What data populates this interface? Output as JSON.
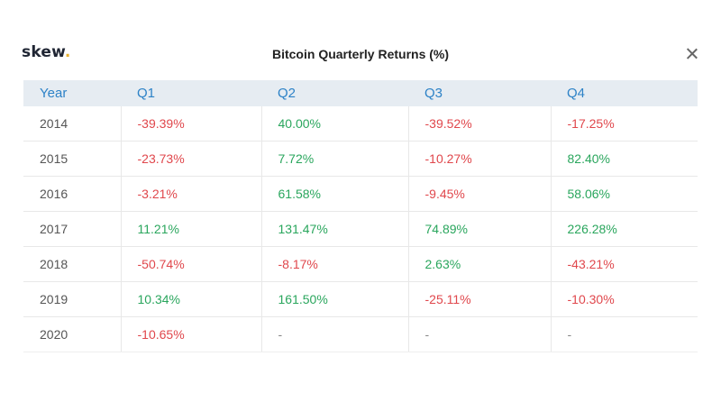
{
  "header": {
    "logo_text": "skew",
    "logo_dot": ".",
    "title": "Bitcoin Quarterly Returns (%)",
    "close_icon": "close-icon"
  },
  "colors": {
    "negative": "#e0474c",
    "positive": "#2aa65d",
    "header_text": "#2d82c7",
    "header_bg": "#e6ecf2",
    "logo_accent": "#e8b130"
  },
  "chart_data": {
    "type": "table",
    "title": "Bitcoin Quarterly Returns (%)",
    "columns": [
      "Year",
      "Q1",
      "Q2",
      "Q3",
      "Q4"
    ],
    "rows": [
      {
        "year": "2014",
        "values": [
          "-39.39%",
          "40.00%",
          "-39.52%",
          "-17.25%"
        ]
      },
      {
        "year": "2015",
        "values": [
          "-23.73%",
          "7.72%",
          "-10.27%",
          "82.40%"
        ]
      },
      {
        "year": "2016",
        "values": [
          "-3.21%",
          "61.58%",
          "-9.45%",
          "58.06%"
        ]
      },
      {
        "year": "2017",
        "values": [
          "11.21%",
          "131.47%",
          "74.89%",
          "226.28%"
        ]
      },
      {
        "year": "2018",
        "values": [
          "-50.74%",
          "-8.17%",
          "2.63%",
          "-43.21%"
        ]
      },
      {
        "year": "2019",
        "values": [
          "10.34%",
          "161.50%",
          "-25.11%",
          "-10.30%"
        ]
      },
      {
        "year": "2020",
        "values": [
          "-10.65%",
          "-",
          "-",
          "-"
        ]
      }
    ]
  }
}
